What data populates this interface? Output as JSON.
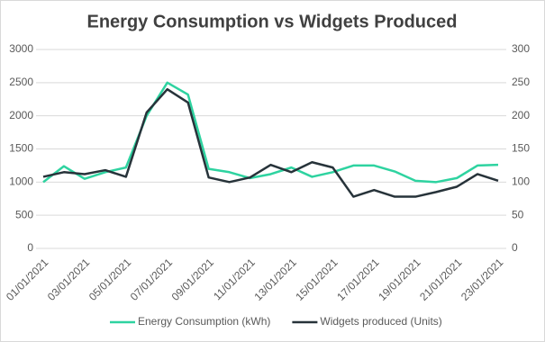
{
  "chart_data": {
    "type": "line",
    "title": "Energy Consumption vs Widgets Produced",
    "categories": [
      "01/01/2021",
      null,
      "03/01/2021",
      null,
      "05/01/2021",
      null,
      "07/01/2021",
      null,
      "09/01/2021",
      null,
      "11/01/2021",
      null,
      "13/01/2021",
      null,
      "15/01/2021",
      null,
      "17/01/2021",
      null,
      "19/01/2021",
      null,
      "21/01/2021",
      null,
      "23/01/2021"
    ],
    "series": [
      {
        "name": "Energy Consumption (kWh)",
        "color": "#2ed3a0",
        "values": [
          1000,
          1240,
          1050,
          1150,
          1220,
          2000,
          2500,
          2320,
          1200,
          1150,
          1060,
          1120,
          1220,
          1080,
          1150,
          1250,
          1250,
          1160,
          1020,
          1000,
          1060,
          1250,
          1260
        ]
      },
      {
        "name": "Widgets produced (Units)",
        "color": "#27333a",
        "axis": "y2",
        "values": [
          108,
          115,
          112,
          118,
          108,
          205,
          240,
          220,
          107,
          100,
          107,
          126,
          115,
          130,
          122,
          78,
          88,
          78,
          78,
          85,
          93,
          112,
          102
        ]
      }
    ],
    "ylim": [
      0,
      3000
    ],
    "yticks": [
      0,
      500,
      1000,
      1500,
      2000,
      2500,
      3000
    ],
    "y2lim": [
      0,
      300
    ],
    "y2ticks": [
      0,
      50,
      100,
      150,
      200,
      250,
      300
    ],
    "grid": true,
    "legend": "bottom"
  }
}
